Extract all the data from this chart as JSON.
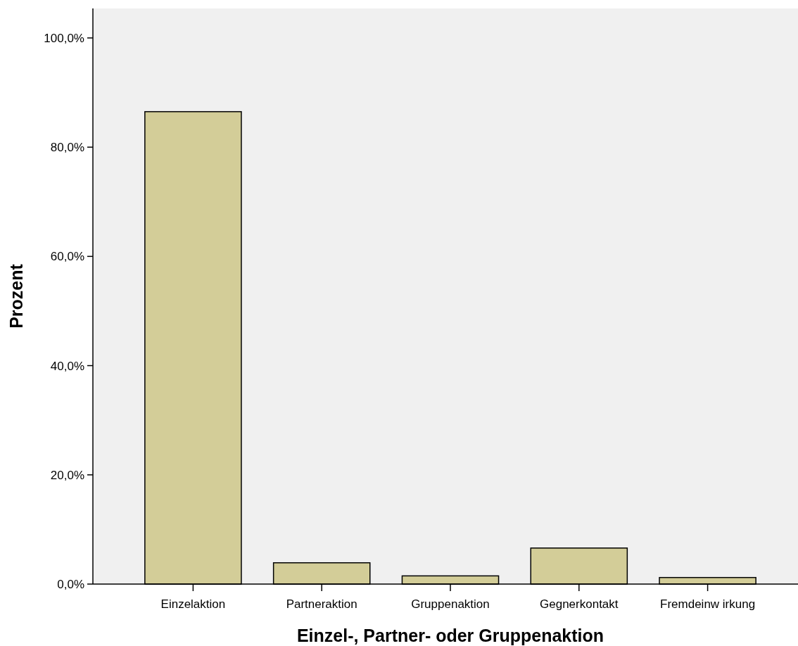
{
  "chart_data": {
    "type": "bar",
    "xlabel": "Einzel-, Partner- oder Gruppenaktion",
    "ylabel": "Prozent",
    "categories": [
      "Einzelaktion",
      "Partneraktion",
      "Gruppenaktion",
      "Gegnerkontakt",
      "Fremdeinw irkung"
    ],
    "values": [
      86.5,
      3.9,
      1.5,
      6.6,
      1.2
    ],
    "color": "#d3cd98",
    "ylim": [
      0,
      105.4
    ],
    "yticks": [
      {
        "value": 0,
        "label": "0,0%"
      },
      {
        "value": 20,
        "label": "20,0%"
      },
      {
        "value": 40,
        "label": "40,0%"
      },
      {
        "value": 60,
        "label": "60,0%"
      },
      {
        "value": 80,
        "label": "80,0%"
      },
      {
        "value": 100,
        "label": "100,0%"
      }
    ],
    "grid": false
  }
}
